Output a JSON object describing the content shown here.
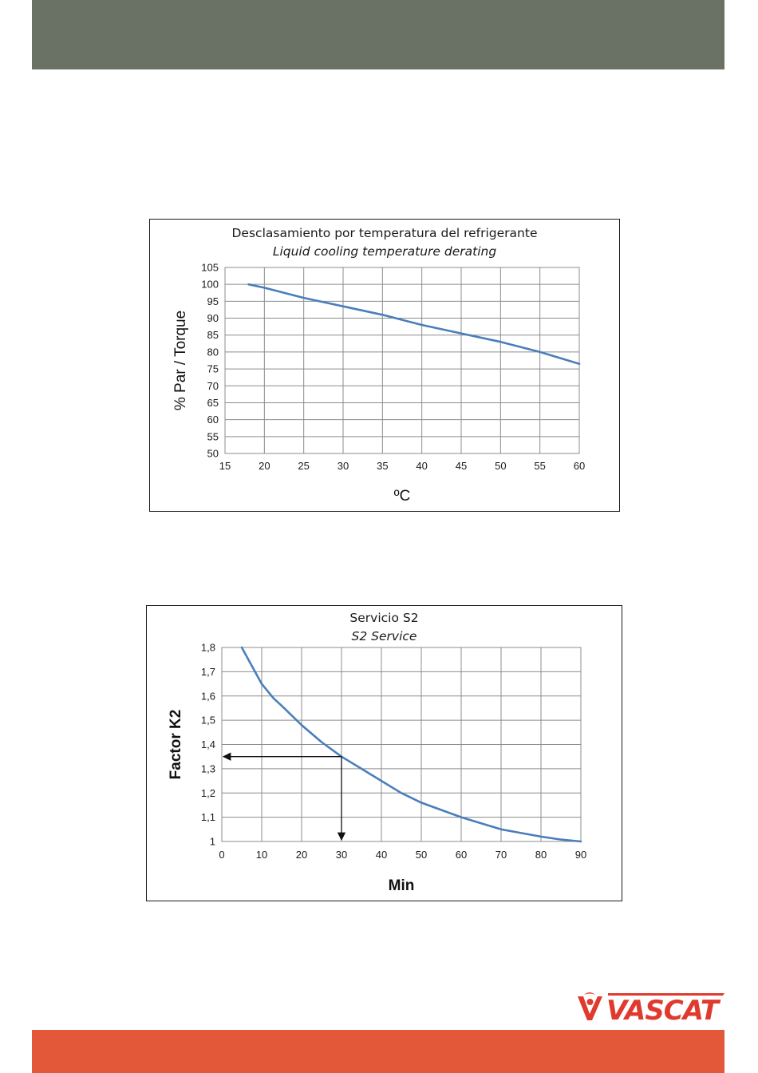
{
  "brand": {
    "logo_text": "VASCAT",
    "colors": {
      "header": "#6a7266",
      "footer": "#e4583a",
      "logo": "#e03a2f",
      "curve": "#4a7ebb"
    }
  },
  "chart_data": [
    {
      "type": "line",
      "title": "Desclasamiento por temperatura del refrigerante",
      "subtitle": "Liquid cooling temperature derating",
      "xlabel": "ºC",
      "ylabel": "% Par / Torque",
      "xlim": [
        15,
        60
      ],
      "ylim": [
        50,
        105
      ],
      "xticks": [
        "15",
        "20",
        "25",
        "30",
        "35",
        "40",
        "45",
        "50",
        "55",
        "60"
      ],
      "yticks": [
        "50",
        "55",
        "60",
        "65",
        "70",
        "75",
        "80",
        "85",
        "90",
        "95",
        "100",
        "105"
      ],
      "grid": true,
      "series": [
        {
          "color": "#4a7ebb",
          "x": [
            18,
            20,
            25,
            30,
            35,
            40,
            45,
            50,
            55,
            60
          ],
          "y": [
            100,
            99,
            96,
            93.5,
            91,
            88,
            85.5,
            83,
            80,
            76.5
          ]
        }
      ]
    },
    {
      "type": "line",
      "title": "Servicio S2",
      "subtitle": "S2 Service",
      "xlabel": "Min",
      "ylabel": "Factor K2",
      "xlim": [
        0,
        90
      ],
      "ylim": [
        1,
        1.8
      ],
      "xticks": [
        "0",
        "10",
        "20",
        "30",
        "40",
        "50",
        "60",
        "70",
        "80",
        "90"
      ],
      "yticks": [
        "1",
        "1,1",
        "1,2",
        "1,3",
        "1,4",
        "1,5",
        "1,6",
        "1,7",
        "1,8"
      ],
      "grid": true,
      "series": [
        {
          "color": "#4a7ebb",
          "x": [
            5,
            7,
            10,
            13,
            15,
            20,
            25,
            30,
            35,
            40,
            45,
            50,
            55,
            60,
            65,
            70,
            75,
            80,
            85,
            90
          ],
          "y": [
            1.8,
            1.74,
            1.65,
            1.59,
            1.56,
            1.48,
            1.41,
            1.35,
            1.3,
            1.25,
            1.2,
            1.16,
            1.13,
            1.1,
            1.075,
            1.05,
            1.035,
            1.02,
            1.008,
            1.0
          ]
        }
      ],
      "annotation": {
        "x": 30,
        "y": 1.35,
        "arrows": [
          "to-y-axis",
          "to-x-axis"
        ]
      }
    }
  ]
}
